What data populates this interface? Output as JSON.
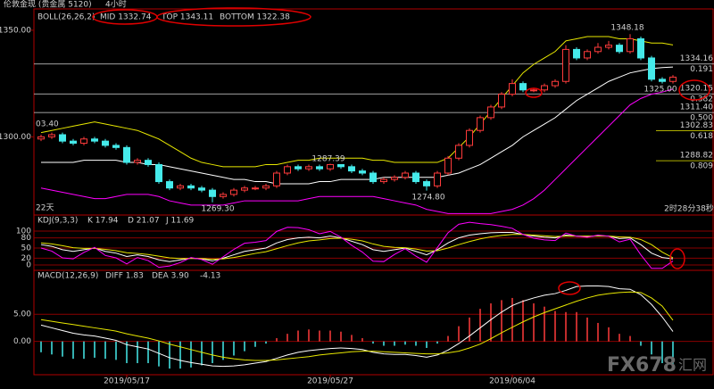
{
  "header": {
    "instrument": "伦敦金现 (贵金属 5120)",
    "period": "4小时",
    "watermark": "FX678",
    "watermark_cn": "汇网"
  },
  "chart_data": [
    {
      "type": "candlestick",
      "indicator": "BOLL(26,26,2)",
      "open": [
        1299,
        1300,
        1301,
        1298,
        1297,
        1299,
        1298,
        1296,
        1295,
        1288,
        1289,
        1287,
        1279,
        1276,
        1277,
        1276,
        1275,
        1272,
        1273,
        1275,
        1276,
        1276,
        1277,
        1283,
        1286,
        1285,
        1286,
        1285,
        1287,
        1286,
        1284,
        1283,
        1279,
        1280,
        1281,
        1283,
        1279,
        1277,
        1283,
        1290,
        1296,
        1303,
        1309,
        1314,
        1320,
        1325,
        1322,
        1322,
        1324,
        1326,
        1341,
        1337,
        1340,
        1342,
        1343,
        1340,
        1346,
        1337,
        1327,
        1326
      ],
      "high": [
        1301,
        1302,
        1302,
        1299,
        1300,
        1300,
        1299,
        1297,
        1296,
        1290,
        1290,
        1288,
        1280,
        1278,
        1278,
        1277,
        1276,
        1274,
        1276,
        1277,
        1277,
        1278,
        1284,
        1287,
        1287,
        1287,
        1287,
        1287.39,
        1287,
        1287,
        1285,
        1284,
        1281,
        1282,
        1284,
        1284,
        1280,
        1284,
        1291,
        1297,
        1304,
        1310,
        1315,
        1321,
        1327,
        1326,
        1323,
        1325,
        1327,
        1343,
        1342,
        1341,
        1344,
        1345,
        1344,
        1348.18,
        1347,
        1338,
        1328,
        1329
      ],
      "low": [
        1298,
        1299,
        1297,
        1296,
        1296,
        1297,
        1295,
        1294,
        1287,
        1287,
        1286,
        1278,
        1275,
        1275,
        1275,
        1274,
        1269.3,
        1271,
        1272,
        1274,
        1275,
        1275,
        1276,
        1282,
        1284,
        1284,
        1284,
        1284,
        1285,
        1283,
        1282,
        1278,
        1278,
        1279,
        1280,
        1278,
        1274.8,
        1276,
        1282,
        1289,
        1295,
        1302,
        1308,
        1313,
        1319,
        1321,
        1321,
        1321,
        1323,
        1325,
        1336,
        1336,
        1339,
        1341,
        1339,
        1339,
        1336,
        1326,
        1325,
        1325
      ],
      "close": [
        1300,
        1301,
        1298,
        1297,
        1299,
        1298,
        1296,
        1295,
        1288,
        1289,
        1287,
        1279,
        1276,
        1277,
        1276,
        1275,
        1272,
        1273,
        1275,
        1276,
        1276,
        1277,
        1283,
        1286,
        1285,
        1286,
        1285,
        1287,
        1286,
        1284,
        1283,
        1279,
        1280,
        1281,
        1283,
        1279,
        1277,
        1283,
        1290,
        1296,
        1303,
        1309,
        1314,
        1320,
        1325,
        1322,
        1322,
        1324,
        1326,
        1341,
        1337,
        1340,
        1342,
        1343,
        1340,
        1346,
        1337,
        1327,
        1326,
        1328
      ],
      "up_color": "#ff3b3b",
      "down_color": "#45eaea",
      "series": [
        {
          "name": "MID 1332.74",
          "color": "#ffffff",
          "values": [
            1288,
            1288,
            1288,
            1288,
            1289,
            1289,
            1289,
            1289,
            1288,
            1288,
            1287,
            1287,
            1286,
            1285,
            1284,
            1283,
            1282,
            1281,
            1280,
            1280,
            1279,
            1279,
            1278,
            1278,
            1278,
            1278,
            1279,
            1279,
            1280,
            1280,
            1280,
            1280,
            1281,
            1281,
            1281,
            1281,
            1281,
            1281,
            1282,
            1283,
            1285,
            1287,
            1290,
            1293,
            1296,
            1300,
            1303,
            1306,
            1309,
            1313,
            1317,
            1320,
            1323,
            1326,
            1328,
            1330,
            1331,
            1332,
            1332.5,
            1332.74
          ]
        },
        {
          "name": "TOP 1343.11",
          "color": "#e8e800",
          "values": [
            1302,
            1303,
            1304,
            1305,
            1306,
            1307,
            1306,
            1305,
            1304,
            1303,
            1301,
            1299,
            1296,
            1293,
            1290,
            1288,
            1287,
            1286,
            1286,
            1286,
            1286,
            1287,
            1287,
            1288,
            1289,
            1289,
            1290,
            1290,
            1290,
            1290,
            1290,
            1289,
            1289,
            1288,
            1288,
            1288,
            1288,
            1288,
            1290,
            1295,
            1300,
            1306,
            1312,
            1318,
            1324,
            1330,
            1334,
            1337,
            1340,
            1345,
            1346,
            1347,
            1347,
            1347,
            1346,
            1346,
            1345,
            1344,
            1344,
            1343.11
          ]
        },
        {
          "name": "BOTTOM 1322.38",
          "color": "#ff00ff",
          "values": [
            1276,
            1275,
            1274,
            1273,
            1272,
            1271,
            1271,
            1272,
            1273,
            1273,
            1273,
            1272,
            1270,
            1269,
            1268,
            1268,
            1268,
            1268,
            1269,
            1270,
            1270,
            1270,
            1270,
            1270,
            1270,
            1271,
            1272,
            1272,
            1272,
            1272,
            1272,
            1272,
            1271,
            1270,
            1269,
            1268,
            1266,
            1265,
            1264,
            1264,
            1264,
            1264,
            1264,
            1265,
            1266,
            1268,
            1271,
            1275,
            1280,
            1285,
            1290,
            1295,
            1300,
            1305,
            1310,
            1315,
            1318,
            1320,
            1321,
            1322.38
          ]
        }
      ],
      "ylim": [
        1263.75,
        1359.58
      ],
      "yticks": [
        {
          "value": 1350,
          "label": "1350.00"
        },
        {
          "value": 1300,
          "label": "1300.00"
        }
      ],
      "fib_levels": [
        {
          "value": 1334.16,
          "label": "1334.16",
          "ratio": "0.191"
        },
        {
          "value": 1320.15,
          "label": "1320.15",
          "ratio": "0.382"
        },
        {
          "value": 1311.4,
          "label": "1311.40",
          "ratio": "0.500"
        },
        {
          "value": 1302.83,
          "label": "1302.83",
          "ratio": "0.618"
        },
        {
          "value": 1288.82,
          "label": "1288.82",
          "ratio": "0.809"
        }
      ],
      "annotations": [
        "1348.18",
        "1325.00",
        "1287.39",
        "1274.80",
        "1269.30",
        "03.40",
        "22天",
        "2时28分38秒"
      ]
    },
    {
      "type": "line",
      "indicator": "KDJ(9,3,3)",
      "series": [
        {
          "name": "K 17.94",
          "color": "#ffffff",
          "values": [
            60,
            55,
            45,
            40,
            45,
            50,
            40,
            35,
            25,
            30,
            25,
            15,
            10,
            15,
            20,
            18,
            12,
            20,
            30,
            40,
            45,
            50,
            65,
            75,
            80,
            82,
            80,
            85,
            80,
            70,
            60,
            45,
            40,
            45,
            50,
            40,
            30,
            45,
            65,
            80,
            88,
            92,
            95,
            96,
            96,
            90,
            85,
            82,
            80,
            88,
            85,
            84,
            86,
            85,
            78,
            80,
            60,
            35,
            22,
            17.94
          ]
        },
        {
          "name": "D 21.07",
          "color": "#e8e800",
          "values": [
            65,
            62,
            57,
            51,
            49,
            49,
            46,
            42,
            36,
            34,
            31,
            26,
            21,
            19,
            19,
            19,
            17,
            18,
            22,
            28,
            34,
            39,
            48,
            57,
            65,
            71,
            74,
            78,
            79,
            76,
            71,
            62,
            55,
            52,
            51,
            47,
            41,
            42,
            50,
            60,
            69,
            77,
            83,
            87,
            90,
            90,
            88,
            86,
            84,
            85,
            85,
            85,
            85,
            85,
            83,
            82,
            75,
            60,
            38,
            21.07
          ]
        },
        {
          "name": "J 11.69",
          "color": "#ff00ff",
          "values": [
            50,
            41,
            21,
            18,
            37,
            52,
            28,
            21,
            3,
            22,
            13,
            -7,
            -3,
            7,
            22,
            16,
            2,
            24,
            46,
            64,
            67,
            72,
            99,
            111,
            110,
            104,
            92,
            99,
            82,
            58,
            38,
            11,
            10,
            31,
            48,
            26,
            8,
            51,
            95,
            120,
            126,
            122,
            119,
            114,
            108,
            90,
            79,
            74,
            72,
            94,
            85,
            82,
            88,
            85,
            68,
            76,
            30,
            -10,
            -10,
            11.69
          ]
        }
      ],
      "ylim": [
        -13.2,
        128.9
      ],
      "yticks": [
        100,
        80,
        50,
        20,
        0
      ]
    },
    {
      "type": "macd",
      "indicator": "MACD(12,26,9)",
      "categories": [
        null,
        null,
        null,
        null,
        null,
        null,
        null,
        null,
        "2019/05/17",
        null,
        null,
        null,
        null,
        null,
        null,
        null,
        null,
        null,
        null,
        null,
        null,
        null,
        null,
        null,
        null,
        null,
        null,
        "2019/05/27",
        null,
        null,
        null,
        null,
        null,
        null,
        null,
        null,
        null,
        null,
        null,
        null,
        null,
        null,
        null,
        null,
        "2019/06/04",
        null,
        null,
        null,
        null,
        null,
        null,
        null,
        null,
        null,
        null,
        null,
        null,
        null,
        null,
        null
      ],
      "series": [
        {
          "name": "DIFF 1.83",
          "color": "#ffffff",
          "values": [
            3,
            2.5,
            2,
            1.5,
            1.2,
            1,
            0.6,
            0.2,
            -0.6,
            -1,
            -1.4,
            -2.2,
            -3,
            -3.5,
            -3.9,
            -4.2,
            -4.5,
            -4.6,
            -4.5,
            -4.3,
            -4,
            -3.7,
            -3.1,
            -2.5,
            -2,
            -1.7,
            -1.5,
            -1.3,
            -1.2,
            -1.3,
            -1.5,
            -2,
            -2.3,
            -2.4,
            -2.4,
            -2.6,
            -2.9,
            -2.5,
            -1.6,
            -0.4,
            1,
            2.5,
            4,
            5.4,
            6.6,
            7.4,
            8,
            8.5,
            8.8,
            9.4,
            10.1,
            10.2,
            10.2,
            10.1,
            9.7,
            9.6,
            8.6,
            6.8,
            4.5,
            1.83
          ]
        },
        {
          "name": "DEA 3.90",
          "color": "#e8e800",
          "values": [
            4,
            3.7,
            3.4,
            3.1,
            2.8,
            2.5,
            2.2,
            1.9,
            1.4,
            1,
            0.6,
            0.1,
            -0.5,
            -1,
            -1.5,
            -2,
            -2.5,
            -2.9,
            -3.2,
            -3.4,
            -3.5,
            -3.5,
            -3.4,
            -3.2,
            -3,
            -2.8,
            -2.5,
            -2.3,
            -2.1,
            -1.9,
            -1.8,
            -1.8,
            -1.9,
            -2,
            -2.1,
            -2.2,
            -2.3,
            -2.3,
            -2.1,
            -1.8,
            -1.2,
            -0.5,
            0.5,
            1.6,
            2.6,
            3.6,
            4.5,
            5.3,
            6,
            6.7,
            7.4,
            8,
            8.5,
            8.8,
            9,
            9.1,
            9,
            8,
            6.5,
            3.9
          ]
        }
      ],
      "histogram": [
        -2,
        -2.4,
        -2.8,
        -3.2,
        -3.2,
        -3,
        -3.2,
        -3.4,
        -4,
        -4,
        -4,
        -4.6,
        -5,
        -5,
        -4.8,
        -4.4,
        -4,
        -3.4,
        -2.6,
        -1.8,
        -1,
        -0.4,
        0.6,
        1.4,
        2,
        2.2,
        2,
        2,
        1.8,
        1.2,
        0.6,
        -0.4,
        -0.8,
        -0.8,
        -0.6,
        -0.8,
        -1.2,
        -0.4,
        1,
        2.8,
        4.4,
        6,
        7,
        7.6,
        8,
        7.6,
        7,
        6.4,
        5.6,
        5.4,
        5.4,
        4.4,
        3.4,
        2.6,
        1.4,
        1,
        -0.8,
        -2.4,
        -4,
        -4.13
      ],
      "up_color": "#ff3b3b",
      "down_color": "#45eaea",
      "ylim": [
        -6.13,
        12.26
      ],
      "yticks": [
        {
          "value": 5,
          "label": "5.00"
        },
        {
          "value": 0,
          "label": "0.00"
        }
      ]
    }
  ]
}
